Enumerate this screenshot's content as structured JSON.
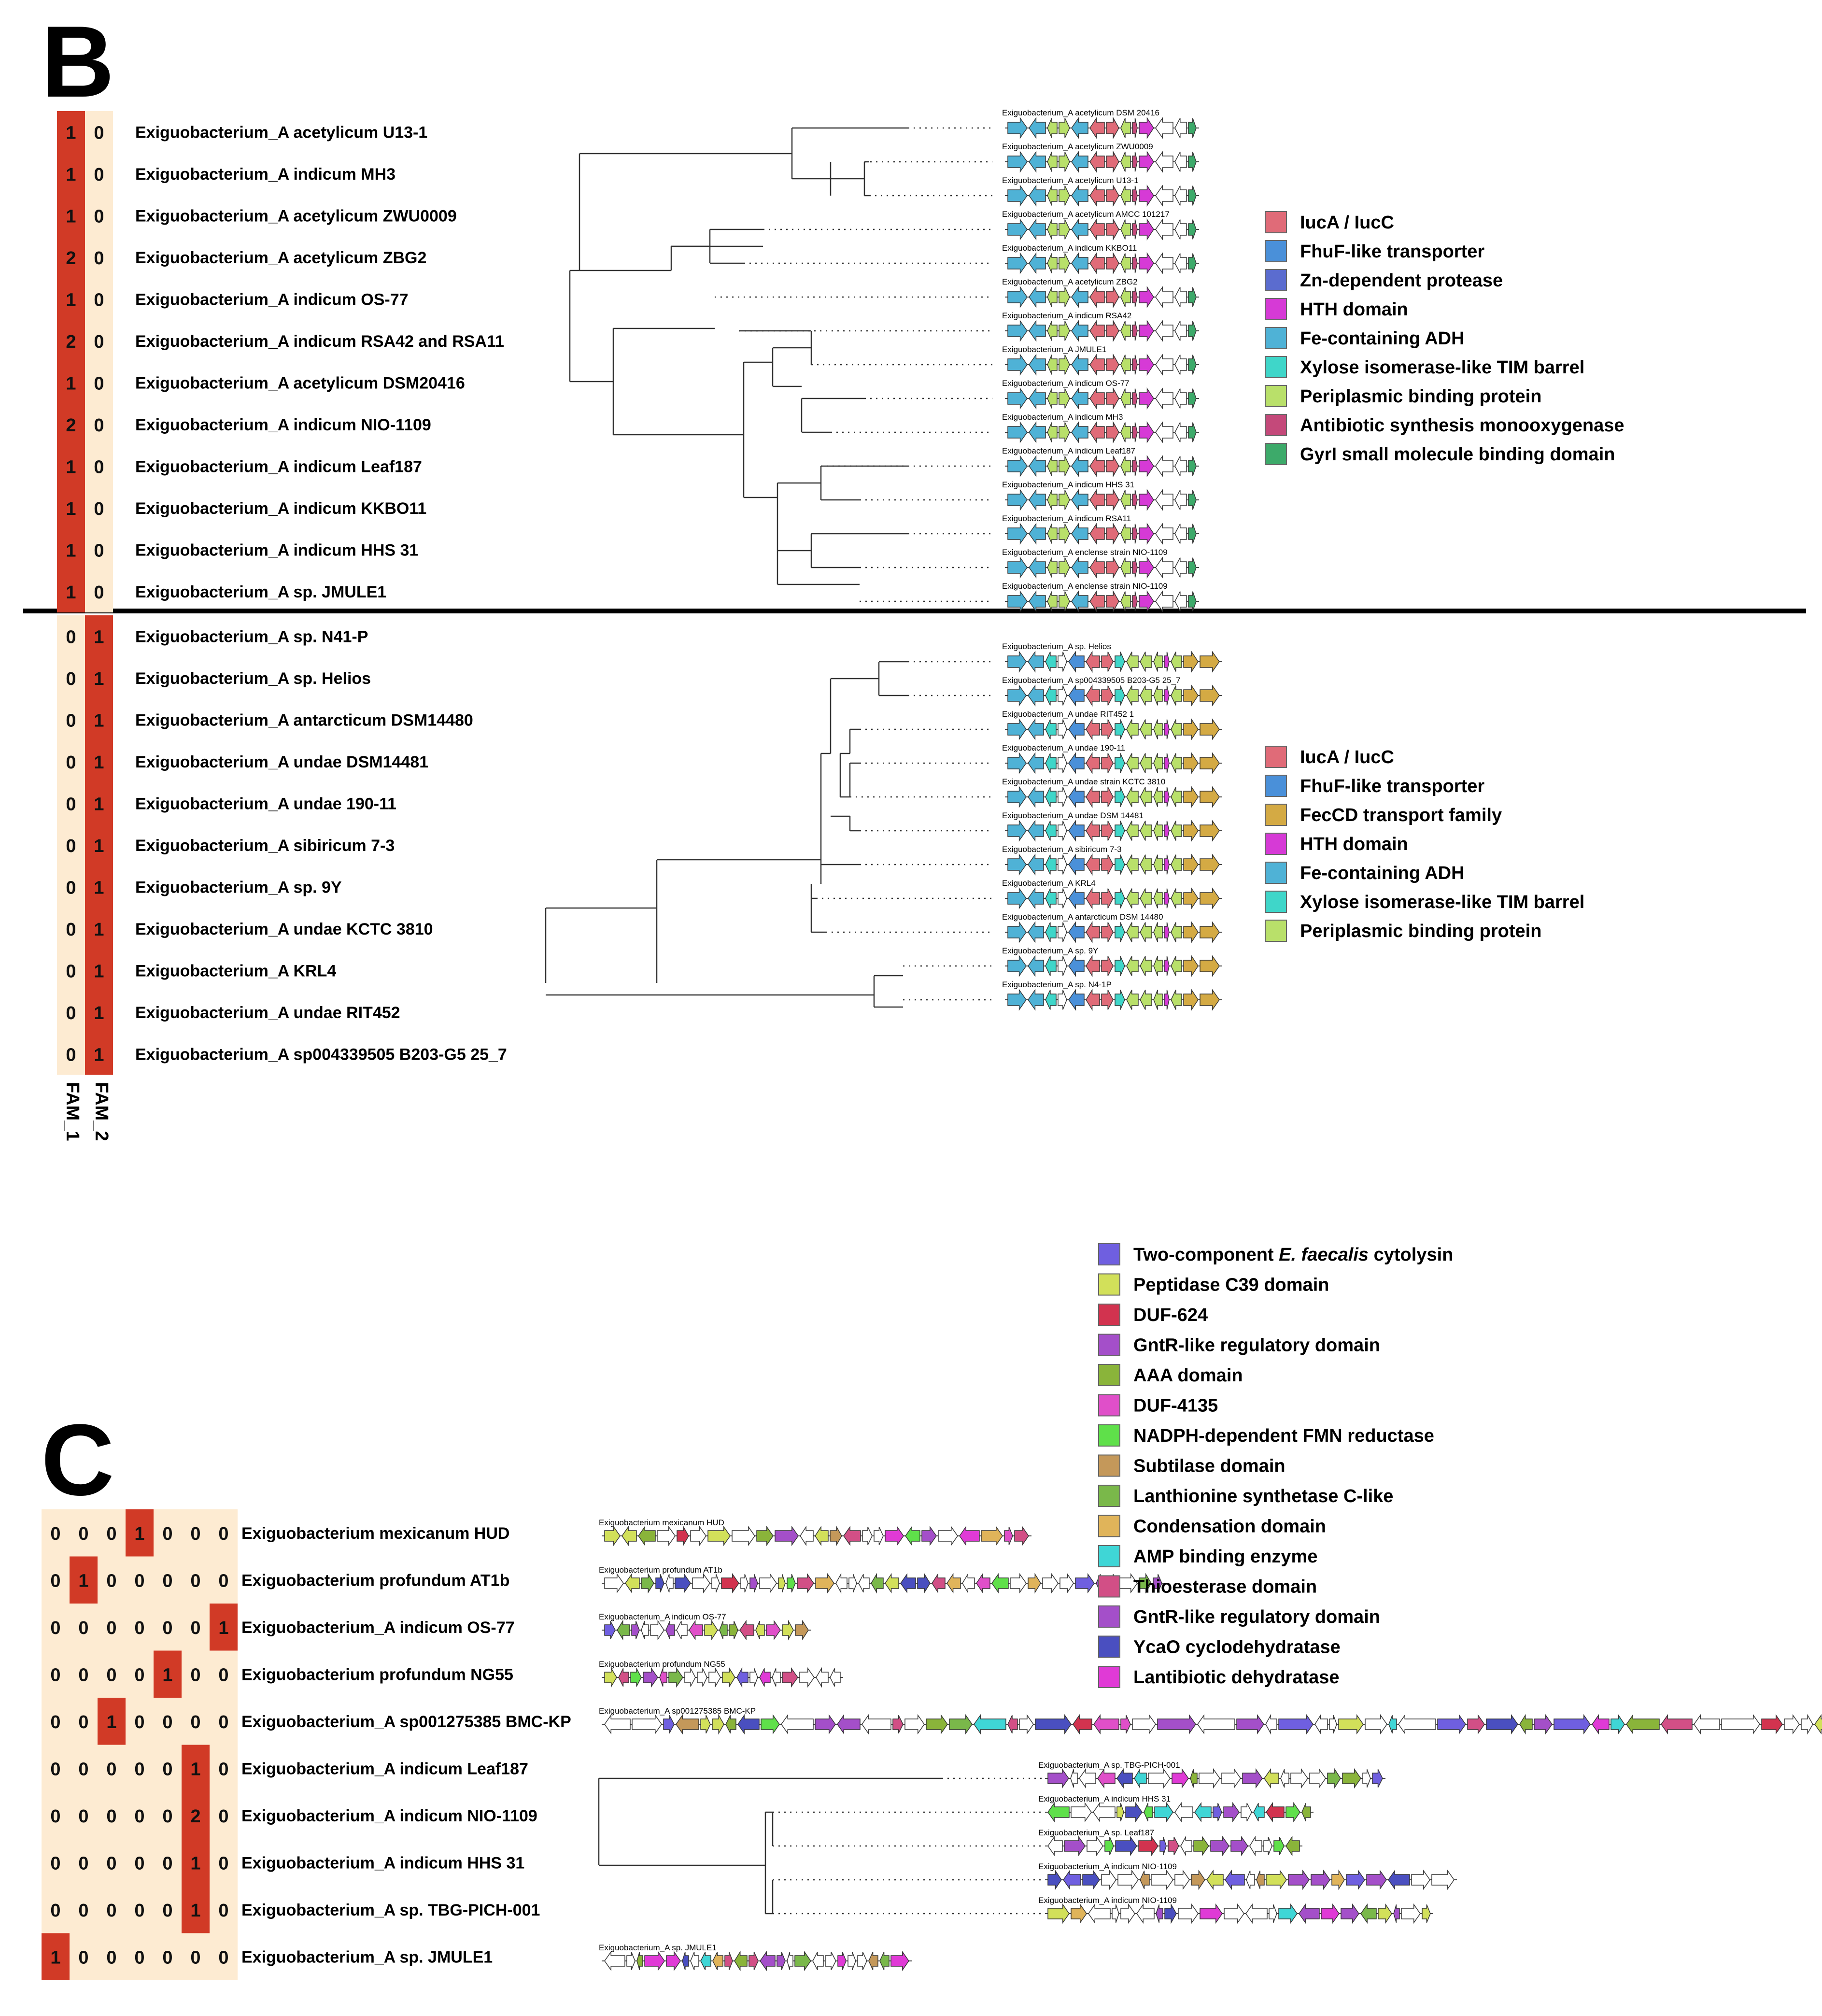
{
  "panel_b": {
    "letter": "B",
    "rows_top": [
      {
        "name": "Exiguobacterium_A acetylicum U13-1",
        "fam1": "1",
        "fam2": "0"
      },
      {
        "name": "Exiguobacterium_A indicum MH3",
        "fam1": "1",
        "fam2": "0"
      },
      {
        "name": "Exiguobacterium_A acetylicum ZWU0009",
        "fam1": "1",
        "fam2": "0"
      },
      {
        "name": "Exiguobacterium_A acetylicum ZBG2",
        "fam1": "2",
        "fam2": "0"
      },
      {
        "name": "Exiguobacterium_A indicum OS-77",
        "fam1": "1",
        "fam2": "0"
      },
      {
        "name": "Exiguobacterium_A indicum RSA42 and RSA11",
        "fam1": "2",
        "fam2": "0"
      },
      {
        "name": "Exiguobacterium_A acetylicum DSM20416",
        "fam1": "1",
        "fam2": "0"
      },
      {
        "name": "Exiguobacterium_A indicum NIO-1109",
        "fam1": "2",
        "fam2": "0"
      },
      {
        "name": "Exiguobacterium_A indicum Leaf187",
        "fam1": "1",
        "fam2": "0"
      },
      {
        "name": "Exiguobacterium_A indicum KKBO11",
        "fam1": "1",
        "fam2": "0"
      },
      {
        "name": "Exiguobacterium_A indicum HHS 31",
        "fam1": "1",
        "fam2": "0"
      },
      {
        "name": "Exiguobacterium_A sp. JMULE1",
        "fam1": "1",
        "fam2": "0"
      }
    ],
    "rows_bottom": [
      {
        "name": "Exiguobacterium_A sp. N41-P",
        "fam1": "0",
        "fam2": "1"
      },
      {
        "name": "Exiguobacterium_A sp. Helios",
        "fam1": "0",
        "fam2": "1"
      },
      {
        "name": "Exiguobacterium_A antarcticum DSM14480",
        "fam1": "0",
        "fam2": "1"
      },
      {
        "name": "Exiguobacterium_A undae DSM14481",
        "fam1": "0",
        "fam2": "1"
      },
      {
        "name": "Exiguobacterium_A undae 190-11",
        "fam1": "0",
        "fam2": "1"
      },
      {
        "name": "Exiguobacterium_A sibiricum 7-3",
        "fam1": "0",
        "fam2": "1"
      },
      {
        "name": "Exiguobacterium_A sp. 9Y",
        "fam1": "0",
        "fam2": "1"
      },
      {
        "name": "Exiguobacterium_A undae KCTC 3810",
        "fam1": "0",
        "fam2": "1"
      },
      {
        "name": "Exiguobacterium_A KRL4",
        "fam1": "0",
        "fam2": "1",
        "highlight": true
      },
      {
        "name": "Exiguobacterium_A undae RIT452",
        "fam1": "0",
        "fam2": "1"
      },
      {
        "name": "Exiguobacterium_A sp004339505 B203-G5 25_7",
        "fam1": "0",
        "fam2": "1"
      }
    ],
    "column_labels": [
      "FAM_1",
      "FAM_2"
    ],
    "cluster_labels_top": [
      "Exiguobacterium_A acetylicum DSM 20416",
      "Exiguobacterium_A acetylicum ZWU0009",
      "Exiguobacterium_A acetylicum U13-1",
      "Exiguobacterium_A acetylicum AMCC 101217",
      "Exiguobacterium_A indicum KKBO11",
      "Exiguobacterium_A acetylicum ZBG2",
      "Exiguobacterium_A indicum RSA42",
      "Exiguobacterium_A JMULE1",
      "Exiguobacterium_A indicum OS-77",
      "Exiguobacterium_A indicum MH3",
      "Exiguobacterium_A indicum Leaf187",
      "Exiguobacterium_A indicum HHS 31",
      "Exiguobacterium_A indicum RSA11",
      "Exiguobacterium_A enclense strain NIO-1109",
      "Exiguobacterium_A enclense strain NIO-1109"
    ],
    "cluster_labels_bottom": [
      "Exiguobacterium_A sp. Helios",
      "Exiguobacterium_A sp004339505 B203-G5 25_7",
      "Exiguobacterium_A undae RIT452 1",
      "Exiguobacterium_A undae 190-11",
      "Exiguobacterium_A undae strain KCTC 3810",
      "Exiguobacterium_A undae DSM 14481",
      "Exiguobacterium_A sibiricum 7-3",
      "Exiguobacterium_A KRL4",
      "Exiguobacterium_A antarcticum DSM 14480",
      "Exiguobacterium_A sp. 9Y",
      "Exiguobacterium_A sp. N4-1P"
    ],
    "legend_top": [
      {
        "label": "IucA / IucC",
        "color": "#e06b78"
      },
      {
        "label": "FhuF-like transporter",
        "color": "#4a90d9"
      },
      {
        "label": "Zn-dependent protease",
        "color": "#5b6ccf"
      },
      {
        "label": "HTH domain",
        "color": "#d63ad6"
      },
      {
        "label": "Fe-containing ADH",
        "color": "#4fb2d6"
      },
      {
        "label": "Xylose isomerase-like TIM barrel",
        "color": "#3fd6c9"
      },
      {
        "label": "Periplasmic binding protein",
        "color": "#b9e06a"
      },
      {
        "label": "Antibiotic synthesis monooxygenase",
        "color": "#c4497a"
      },
      {
        "label": "GyrI small molecule binding domain",
        "color": "#3daa6a"
      }
    ],
    "legend_bottom": [
      {
        "label": "IucA / IucC",
        "color": "#e06b78"
      },
      {
        "label": "FhuF-like transporter",
        "color": "#4a90d9"
      },
      {
        "label": "FecCD transport family",
        "color": "#d4aa44"
      },
      {
        "label": "HTH domain",
        "color": "#d63ad6"
      },
      {
        "label": "Fe-containing ADH",
        "color": "#4fb2d6"
      },
      {
        "label": "Xylose isomerase-like TIM barrel",
        "color": "#3fd6c9"
      },
      {
        "label": "Periplasmic binding protein",
        "color": "#b9e06a"
      }
    ]
  },
  "panel_c": {
    "letter": "C",
    "rows": [
      {
        "name": "Exiguobacterium mexicanum HUD",
        "values": [
          "0",
          "0",
          "0",
          "1",
          "0",
          "0",
          "0"
        ]
      },
      {
        "name": "Exiguobacterium profundum AT1b",
        "values": [
          "0",
          "1",
          "0",
          "0",
          "0",
          "0",
          "0"
        ]
      },
      {
        "name": "Exiguobacterium_A indicum OS-77",
        "values": [
          "0",
          "0",
          "0",
          "0",
          "0",
          "0",
          "1"
        ]
      },
      {
        "name": "Exiguobacterium profundum NG55",
        "values": [
          "0",
          "0",
          "0",
          "0",
          "1",
          "0",
          "0"
        ]
      },
      {
        "name": "Exiguobacterium_A sp001275385 BMC-KP",
        "values": [
          "0",
          "0",
          "1",
          "0",
          "0",
          "0",
          "0"
        ]
      },
      {
        "name": "Exiguobacterium_A indicum Leaf187",
        "values": [
          "0",
          "0",
          "0",
          "0",
          "0",
          "1",
          "0"
        ]
      },
      {
        "name": "Exiguobacterium_A indicum NIO-1109",
        "values": [
          "0",
          "0",
          "0",
          "0",
          "0",
          "2",
          "0"
        ]
      },
      {
        "name": "Exiguobacterium_A indicum HHS 31",
        "values": [
          "0",
          "0",
          "0",
          "0",
          "0",
          "1",
          "0"
        ]
      },
      {
        "name": "Exiguobacterium_A sp. TBG-PICH-001",
        "values": [
          "0",
          "0",
          "0",
          "0",
          "0",
          "1",
          "0"
        ]
      },
      {
        "name": "Exiguobacterium_A sp. JMULE1",
        "values": [
          "1",
          "0",
          "0",
          "0",
          "0",
          "0",
          "0"
        ]
      }
    ],
    "cluster_labels_single": [
      "Exiguobacterium mexicanum HUD",
      "Exiguobacterium profundum AT1b",
      "Exiguobacterium_A indicum OS-77",
      "Exiguobacterium profundum NG55",
      "Exiguobacterium_A sp001275385 BMC-KP"
    ],
    "cluster_labels_tree": [
      "Exiguobacterium_A sp. TBG-PICH-001",
      "Exiguobacterium_A indicum HHS 31",
      "Exiguobacterium_A sp. Leaf187",
      "Exiguobacterium_A indicum NIO-1109",
      "Exiguobacterium_A indicum NIO-1109"
    ],
    "cluster_label_last": "Exiguobacterium_A sp. JMULE1",
    "legend": [
      {
        "label_pre": "Two-component ",
        "label_italic": "E. faecalis",
        "label_post": " cytolysin",
        "color": "#6f5fe0"
      },
      {
        "label_pre": "Peptidase C39 domain",
        "label_italic": "",
        "label_post": "",
        "color": "#d2e05a"
      },
      {
        "label_pre": "DUF-624",
        "label_italic": "",
        "label_post": "",
        "color": "#d2334f"
      },
      {
        "label_pre": "GntR-like regulatory domain",
        "label_italic": "",
        "label_post": "",
        "color": "#a44fc9"
      },
      {
        "label_pre": "AAA domain",
        "label_italic": "",
        "label_post": "",
        "color": "#8ab43a"
      },
      {
        "label_pre": "DUF-4135",
        "label_italic": "",
        "label_post": "",
        "color": "#e04fc9"
      },
      {
        "label_pre": "NADPH-dependent FMN reductase",
        "label_italic": "",
        "label_post": "",
        "color": "#5fe04a"
      },
      {
        "label_pre": "Subtilase domain",
        "label_italic": "",
        "label_post": "",
        "color": "#c4985a"
      },
      {
        "label_pre": "Lanthionine synthetase C-like",
        "label_italic": "",
        "label_post": "",
        "color": "#7ab84a"
      },
      {
        "label_pre": "Condensation domain",
        "label_italic": "",
        "label_post": "",
        "color": "#e0b45a"
      },
      {
        "label_pre": "AMP binding enzyme",
        "label_italic": "",
        "label_post": "",
        "color": "#3fd6d6"
      },
      {
        "label_pre": "Thioesterase domain",
        "label_italic": "",
        "label_post": "",
        "color": "#d24f86"
      },
      {
        "label_pre": "GntR-like regulatory domain",
        "label_italic": "",
        "label_post": "",
        "color": "#a44fc9"
      },
      {
        "label_pre": "YcaO cyclodehydratase",
        "label_italic": "",
        "label_post": "",
        "color": "#4a4fc0"
      },
      {
        "label_pre": "Lantibiotic dehydratase",
        "label_italic": "",
        "label_post": "",
        "color": "#e03ad6"
      }
    ]
  },
  "colors": {
    "heat_on": "#d13a26",
    "heat_off": "#fdebd2",
    "tree": "#333333",
    "highlight": "#e02020"
  }
}
